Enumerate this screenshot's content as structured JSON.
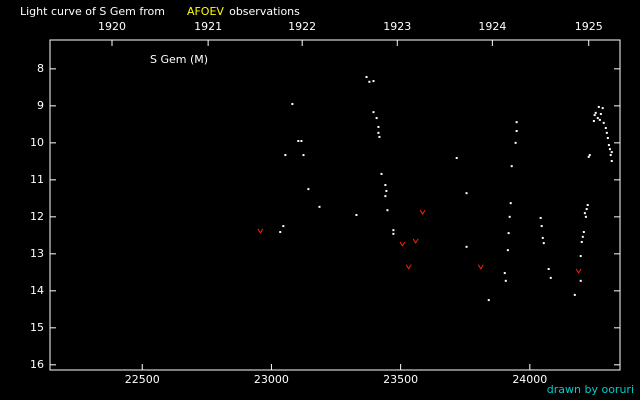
{
  "chart_data": {
    "type": "scatter",
    "title_segments": [
      {
        "text": "Light curve of S Gem from",
        "color": "#ffffff"
      },
      {
        "text": "AFOEV",
        "color": "#ffff00"
      },
      {
        "text": "observations",
        "color": "#ffffff"
      }
    ],
    "annotation": "S Gem (M)",
    "credit": "drawn by ooruri",
    "credit_color": "#00cccc",
    "xlim": [
      22143,
      24349
    ],
    "ylim": [
      16.14,
      7.22
    ],
    "xticks": [
      22500,
      23000,
      23500,
      24000
    ],
    "yticks": [
      8,
      9,
      10,
      11,
      12,
      13,
      14,
      15,
      16
    ],
    "x2ticks": [
      {
        "value": 22383,
        "label": "1920"
      },
      {
        "value": 22755,
        "label": "1921"
      },
      {
        "value": 23119,
        "label": "1922"
      },
      {
        "value": 23487,
        "label": "1923"
      },
      {
        "value": 23855,
        "label": "1924"
      },
      {
        "value": 24228,
        "label": "1925"
      }
    ],
    "series": [
      {
        "color": "#ffffff",
        "marker": "dot",
        "x": [
          23034,
          23046,
          23054,
          23081,
          23104,
          23116,
          23124,
          23143,
          23186,
          23329,
          23368,
          23379,
          23395,
          23395,
          23407,
          23414,
          23414,
          23418,
          23426,
          23441,
          23445,
          23441,
          23449,
          23472,
          23472,
          23717,
          23755,
          23755,
          23841,
          23903,
          23907,
          23915,
          23918,
          23922,
          23926,
          23930,
          23945,
          23949,
          23949,
          24042,
          24046,
          24050,
          24054,
          24073,
          24081,
          24174,
          24197,
          24197,
          24201,
          24205,
          24209,
          24213,
          24220,
          24224,
          24217,
          24228,
          24232,
          24248,
          24251,
          24255,
          24263,
          24267,
          24271,
          24275,
          24282,
          24286,
          24294,
          24298,
          24302,
          24306,
          24310,
          24313,
          24317,
          24317
        ],
        "values": [
          12.41,
          12.25,
          10.33,
          8.95,
          9.95,
          9.95,
          10.33,
          11.25,
          11.73,
          11.95,
          8.22,
          8.35,
          8.33,
          9.17,
          9.33,
          9.57,
          9.73,
          9.84,
          10.84,
          11.14,
          11.3,
          11.44,
          11.82,
          12.36,
          12.46,
          10.41,
          11.36,
          12.81,
          14.25,
          13.52,
          13.73,
          12.9,
          12.44,
          12.0,
          11.63,
          10.63,
          10.0,
          9.68,
          9.44,
          12.03,
          12.25,
          12.57,
          12.71,
          13.41,
          13.65,
          14.11,
          13.73,
          13.06,
          12.68,
          12.54,
          12.41,
          11.9,
          11.79,
          11.68,
          12.0,
          10.38,
          10.33,
          9.41,
          9.25,
          9.19,
          9.33,
          9.03,
          9.38,
          9.22,
          9.06,
          9.46,
          9.6,
          9.73,
          9.87,
          10.06,
          10.17,
          10.33,
          10.49,
          10.25
        ]
      },
      {
        "color": "#ff2200",
        "marker": "v",
        "x": [
          22957,
          23507,
          23531,
          23558,
          23585,
          23810,
          24189
        ],
        "values": [
          12.38,
          12.73,
          13.35,
          12.65,
          11.87,
          13.35,
          13.46
        ]
      }
    ]
  }
}
